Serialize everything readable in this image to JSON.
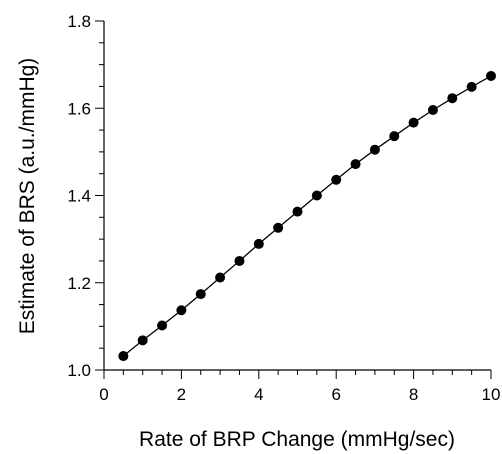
{
  "chart_data": {
    "type": "scatter",
    "title": "",
    "xlabel": "Rate of BRP Change (mmHg/sec)",
    "ylabel": "Estimate of BRS (a.u./mmHg)",
    "xlim": [
      0,
      10
    ],
    "ylim": [
      1.0,
      1.8
    ],
    "x_ticks": [
      "0",
      "2",
      "4",
      "6",
      "8",
      "10"
    ],
    "y_ticks": [
      "1.0",
      "1.2",
      "1.4",
      "1.6",
      "1.8"
    ],
    "grid": false,
    "legend": "none",
    "series": [
      {
        "x": [
          0.5,
          1.0,
          1.5,
          2.0,
          2.5,
          3.0,
          3.5,
          4.0,
          4.5,
          5.0,
          5.5,
          6.0,
          6.5,
          7.0,
          7.5,
          8.0,
          8.5,
          9.0,
          9.5,
          10.0
        ],
        "y": [
          1.032,
          1.068,
          1.102,
          1.137,
          1.174,
          1.212,
          1.25,
          1.289,
          1.326,
          1.363,
          1.4,
          1.436,
          1.472,
          1.505,
          1.536,
          1.567,
          1.596,
          1.623,
          1.649,
          1.674
        ],
        "marker": "filled-circle",
        "line": "connected",
        "color": "#000000"
      }
    ]
  }
}
